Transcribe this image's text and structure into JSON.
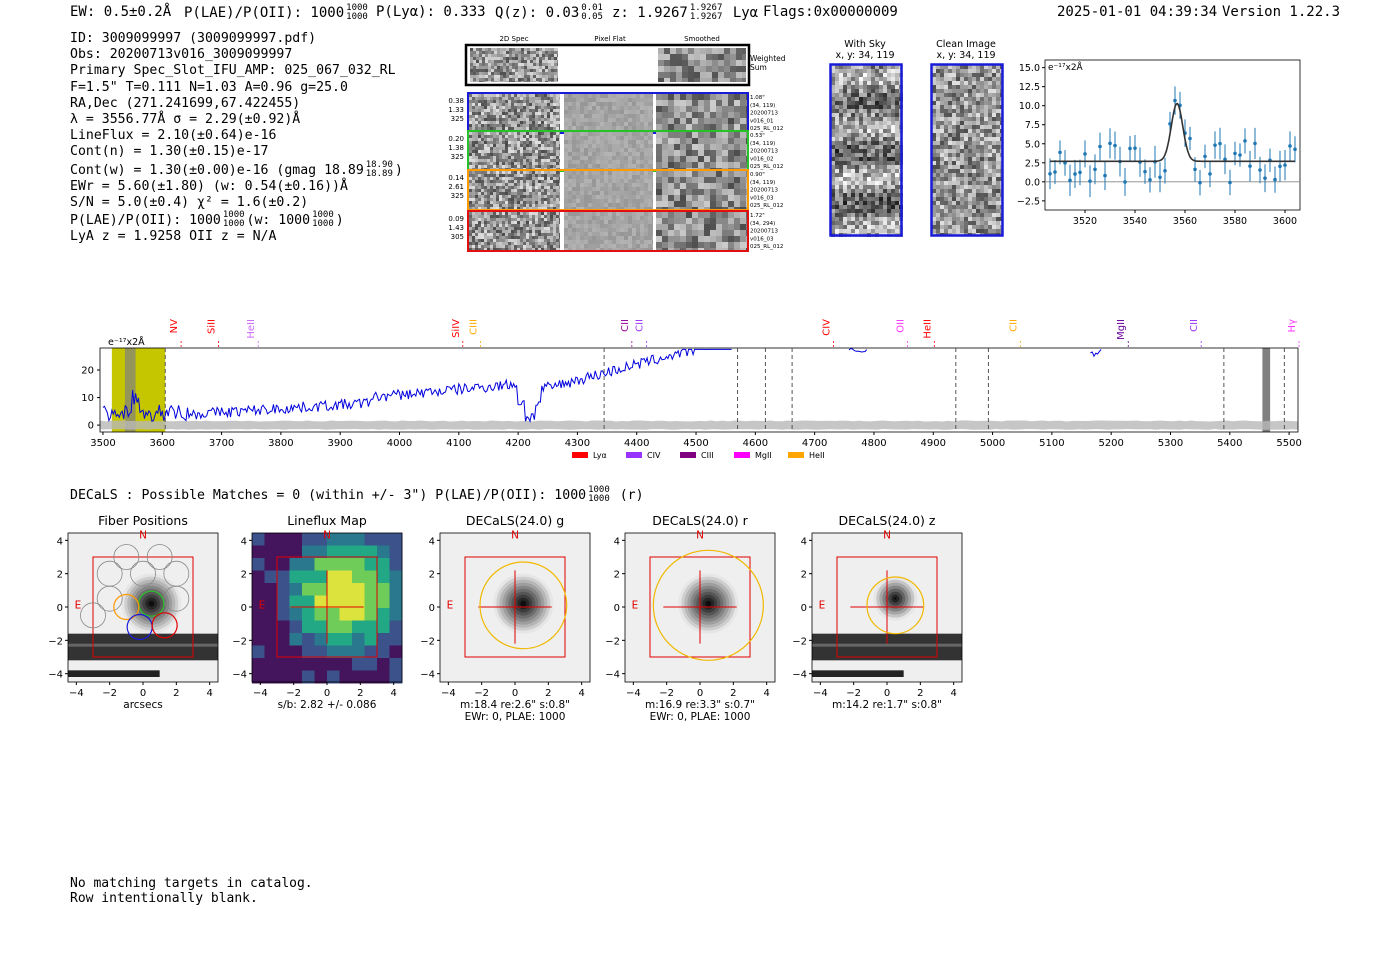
{
  "header": {
    "ew": "EW: 0.5±0.2Å",
    "plae": "P(LAE)/P(OII): 1000",
    "plae_hi": "1000",
    "plae_lo": "1000",
    "plya": "P(Lyα): 0.333",
    "qz": "Q(z): 0.03",
    "qz_hi": "0.01",
    "qz_lo": "0.05",
    "z": "z: 1.9267",
    "z_hi": "1.9267",
    "z_lo": "1.9267",
    "z_line": "Lyα",
    "flags": "Flags:0x00000009",
    "timestamp": "2025-01-01 04:39:34",
    "version": "Version 1.22.3"
  },
  "stats": {
    "id": "ID: 3009099997 (3009099997.pdf)",
    "obs": "Obs: 20200713v016_3009099997",
    "primary": "Primary Spec_Slot_IFU_AMP: 025_067_032_RL",
    "fiber": "F=1.5\"  T=0.111  N=1.03  A=0.96  g=25.0",
    "radec": "RA,Dec (271.241699,67.422455)",
    "lambda": "λ = 3556.77Å   σ = 2.29(±0.92)Å",
    "lineflux": "LineFlux = 2.10(±0.64)e-16",
    "contn": "Cont(n) = 1.30(±0.15)e-17",
    "contw": "Cont(w) = 1.30(±0.00)e-16 (gmag 18.89",
    "contw_hi": "18.90",
    "contw_lo": "18.89",
    "ewr": "EWr = 5.60(±1.80) (w: 0.54(±0.16))Å",
    "sn": "S/N = 5.0(±0.4)  χ² = 1.6(±0.2)",
    "plae": "P(LAE)/P(OII): 1000",
    "plae_hi": "1000",
    "plae_lo": "1000",
    "plae_w": "(w: 1000",
    "plae_w_hi": "1000",
    "plae_w_lo": "1000",
    "lya": "LyA z = 1.9258   OII z = N/A"
  },
  "cutouts": {
    "col_2d": "2D Spec",
    "col_flat": "Pixel Flat",
    "col_smooth": "Smoothed",
    "weighted_sum": "Weighted Sum",
    "rows": [
      {
        "left": [
          "0.38",
          "1.33",
          "325"
        ],
        "right": [
          "1.08\"",
          "(34, 119)",
          "20200713",
          "v016_01",
          "025_RL_012"
        ],
        "color": "#1a1adb"
      },
      {
        "left": [
          "0.20",
          "1.38",
          "325"
        ],
        "right": [
          "0.53\"",
          "(34, 119)",
          "20200713",
          "v016_02",
          "025_RL_012"
        ],
        "color": "#27c227"
      },
      {
        "left": [
          "0.14",
          "2.61",
          "325"
        ],
        "right": [
          "0.90\"",
          "(34, 119)",
          "20200713",
          "v016_03",
          "025_RL_012"
        ],
        "color": "#ff9a00"
      },
      {
        "left": [
          "0.09",
          "1.43",
          "305"
        ],
        "right": [
          "1.72\"",
          "(34, 294)",
          "20200713",
          "v016_03",
          "025_RL_012"
        ],
        "color": "#e01010"
      }
    ]
  },
  "sky_panels": {
    "with_sky": "With Sky",
    "with_sky_xy": "x, y: 34, 119",
    "clean": "Clean Image",
    "clean_xy": "x, y: 34, 119"
  },
  "line_fit": {
    "unit_label": "e⁻¹⁷x2Å",
    "y_ticks": [
      "15.0",
      "12.5",
      "10.0",
      "7.5",
      "5.0",
      "2.5",
      "0.0",
      "−2.5"
    ],
    "x_ticks": [
      "3520",
      "3540",
      "3560",
      "3580",
      "3600"
    ]
  },
  "spectrum": {
    "unit_label": "e⁻¹⁷x2Å",
    "y_ticks": [
      "20",
      "10",
      "0"
    ],
    "x_ticks": [
      "3500",
      "3600",
      "3700",
      "3800",
      "3900",
      "4000",
      "4100",
      "4200",
      "4300",
      "4400",
      "4500",
      "4600",
      "4700",
      "4800",
      "4900",
      "5000",
      "5100",
      "5200",
      "5300",
      "5400",
      "5500"
    ],
    "lines": [
      {
        "name": "NV",
        "color": "#ff0000"
      },
      {
        "name": "SiII",
        "color": "#ff0000"
      },
      {
        "name": "HeII",
        "color": "#cc66ff"
      },
      {
        "name": "SiIV",
        "color": "#ff0000"
      },
      {
        "name": "CIII",
        "color": "#ffaa00"
      },
      {
        "name": "CII",
        "color": "#990099"
      },
      {
        "name": "CII",
        "color": "#9933ff"
      },
      {
        "name": "CIV",
        "color": "#ff0000"
      },
      {
        "name": "OII",
        "color": "#ff33ff"
      },
      {
        "name": "HeII",
        "color": "#ff0000"
      },
      {
        "name": "CII",
        "color": "#ffaa00"
      },
      {
        "name": "MgII",
        "color": "#660099"
      },
      {
        "name": "CII",
        "color": "#9933ff"
      },
      {
        "name": "Hγ",
        "color": "#ff33ff"
      }
    ],
    "legend": [
      {
        "name": "Lyα",
        "color": "#ff0000"
      },
      {
        "name": "CIV",
        "color": "#9933ff"
      },
      {
        "name": "CIII",
        "color": "#800080"
      },
      {
        "name": "MgII",
        "color": "#ff00ff"
      },
      {
        "name": "HeII",
        "color": "#ffa500"
      }
    ]
  },
  "decals": {
    "header": "DECaLS : Possible Matches = 0 (within +/- 3\")  P(LAE)/P(OII): 1000",
    "header_hi": "1000",
    "header_lo": "1000",
    "header_band": "(r)",
    "compass_n": "N",
    "compass_e": "E",
    "axis_ticks": [
      "4",
      "2",
      "0",
      "−2",
      "−4"
    ],
    "x_ticks": [
      "−4",
      "−2",
      "0",
      "2",
      "4"
    ],
    "panels": [
      {
        "title": "Fiber Positions",
        "caption1": "arcsecs",
        "caption2": ""
      },
      {
        "title": "Lineflux Map",
        "caption1": "s/b: 2.82 +/- 0.086",
        "caption2": ""
      },
      {
        "title": "DECaLS(24.0) g",
        "caption1": "m:18.4  re:2.6\"  s:0.8\"",
        "caption2": "EWr: 0, PLAE: 1000"
      },
      {
        "title": "DECaLS(24.0) r",
        "caption1": "m:16.9  re:3.3\"  s:0.7\"",
        "caption2": "EWr: 0, PLAE: 1000"
      },
      {
        "title": "DECaLS(24.0) z",
        "caption1": "m:14.2  re:1.7\"  s:0.8\"",
        "caption2": ""
      }
    ]
  },
  "footer": {
    "line1": "No matching targets in catalog.",
    "line2": "Row intentionally blank."
  }
}
